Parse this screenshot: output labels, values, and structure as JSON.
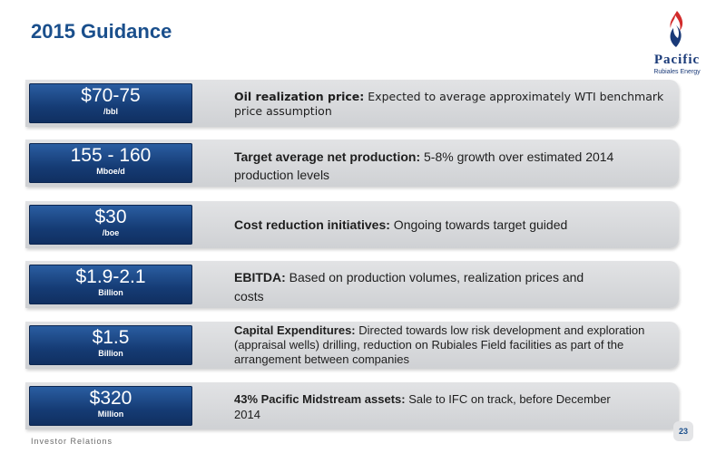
{
  "title": "2015 Guidance",
  "logo": {
    "name": "Pacific",
    "subtitle": "Rubiales Energy"
  },
  "items": [
    {
      "value": "$70-75",
      "unit": "/bbl",
      "label": "Oil realization price:",
      "text": " Expected to average approximately WTI benchmark price assumption"
    },
    {
      "value": "155 - 160",
      "unit": "Mboe/d",
      "label": "Target average net production:",
      "text": " 5-8% growth over estimated 2014 production levels"
    },
    {
      "value": "$30",
      "unit": "/boe",
      "label": "Cost reduction initiatives:",
      "text": " Ongoing towards target guided"
    },
    {
      "value": "$1.9-2.1",
      "unit": "Billion",
      "label": "EBITDA:",
      "text": " Based on production volumes, realization prices and costs"
    },
    {
      "value": "$1.5",
      "unit": "Billion",
      "label": "Capital Expenditures:",
      "text": " Directed towards low risk development and exploration (appraisal wells) drilling, reduction on Rubiales Field facilities as part of the arrangement between companies"
    },
    {
      "value": "$320",
      "unit": "Million",
      "label": "43% Pacific Midstream assets:",
      "text": " Sale to IFC on track, before December 2014"
    }
  ],
  "footer": {
    "label": "Investor Relations",
    "page": "23"
  },
  "colors": {
    "title": "#1a4f8c",
    "badge": "#153b74",
    "logo_red": "#d22b2b"
  }
}
